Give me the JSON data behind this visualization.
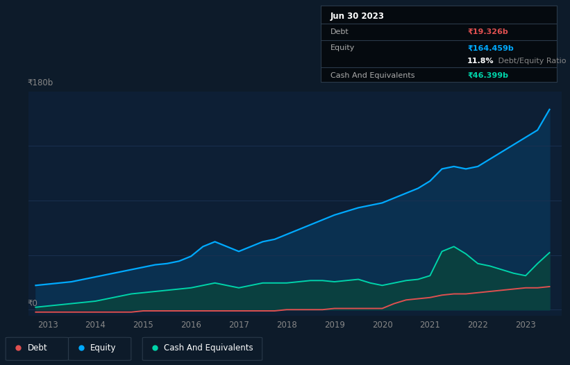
{
  "bg_color": "#0d1b2a",
  "plot_bg_color": "#0d1f35",
  "equity_color": "#00aaff",
  "equity_fill_color": "#0a3050",
  "debt_color": "#e05050",
  "cash_color": "#00d4aa",
  "cash_fill_color": "#0a4040",
  "y_label_top": "₹180b",
  "y_label_zero": "₹0",
  "x_ticks": [
    "2013",
    "2014",
    "2015",
    "2016",
    "2017",
    "2018",
    "2019",
    "2020",
    "2021",
    "2022",
    "2023"
  ],
  "title_text": "Jun 30 2023",
  "ylim": [
    -5,
    180
  ],
  "xlim_start": 2012.6,
  "xlim_end": 2023.75,
  "years": [
    2012.75,
    2013.0,
    2013.25,
    2013.5,
    2013.75,
    2014.0,
    2014.25,
    2014.5,
    2014.75,
    2015.0,
    2015.25,
    2015.5,
    2015.75,
    2016.0,
    2016.25,
    2016.5,
    2016.75,
    2017.0,
    2017.25,
    2017.5,
    2017.75,
    2018.0,
    2018.25,
    2018.5,
    2018.75,
    2019.0,
    2019.25,
    2019.5,
    2019.75,
    2020.0,
    2020.25,
    2020.5,
    2020.75,
    2021.0,
    2021.25,
    2021.5,
    2021.75,
    2022.0,
    2022.25,
    2022.5,
    2022.75,
    2023.0,
    2023.25,
    2023.5
  ],
  "equity": [
    20,
    21,
    22,
    23,
    25,
    27,
    29,
    31,
    33,
    35,
    37,
    38,
    40,
    44,
    52,
    56,
    52,
    48,
    52,
    56,
    58,
    62,
    66,
    70,
    74,
    78,
    81,
    84,
    86,
    88,
    92,
    96,
    100,
    106,
    116,
    118,
    116,
    118,
    124,
    130,
    136,
    142,
    148,
    165
  ],
  "cash": [
    2,
    3,
    4,
    5,
    6,
    7,
    9,
    11,
    13,
    14,
    15,
    16,
    17,
    18,
    20,
    22,
    20,
    18,
    20,
    22,
    22,
    22,
    23,
    24,
    24,
    23,
    24,
    25,
    22,
    20,
    22,
    24,
    25,
    28,
    48,
    52,
    46,
    38,
    36,
    33,
    30,
    28,
    38,
    47
  ],
  "debt": [
    -2,
    -2,
    -2,
    -2,
    -2,
    -2,
    -2,
    -2,
    -2,
    -1,
    -1,
    -1,
    -1,
    -1,
    -1,
    -1,
    -1,
    -1,
    -1,
    -1,
    -1,
    0,
    0,
    0,
    0,
    1,
    1,
    1,
    1,
    1,
    5,
    8,
    9,
    10,
    12,
    13,
    13,
    14,
    15,
    16,
    17,
    18,
    18,
    19
  ],
  "legend_items": [
    {
      "label": "Debt",
      "color": "#e05050"
    },
    {
      "label": "Equity",
      "color": "#00aaff"
    },
    {
      "label": "Cash And Equivalents",
      "color": "#00d4aa"
    }
  ],
  "tooltip": {
    "title": "Jun 30 2023",
    "rows": [
      {
        "label": "Debt",
        "value": "₹19.326b",
        "vcolor": "#e05050",
        "separator": true
      },
      {
        "label": "Equity",
        "value": "₹164.459b",
        "vcolor": "#00aaff",
        "separator": false
      },
      {
        "label": "",
        "bold": "11.8%",
        "rest": " Debt/Equity Ratio",
        "separator": true
      },
      {
        "label": "Cash And Equivalents",
        "value": "₹46.399b",
        "vcolor": "#00d4aa",
        "separator": false
      }
    ]
  }
}
